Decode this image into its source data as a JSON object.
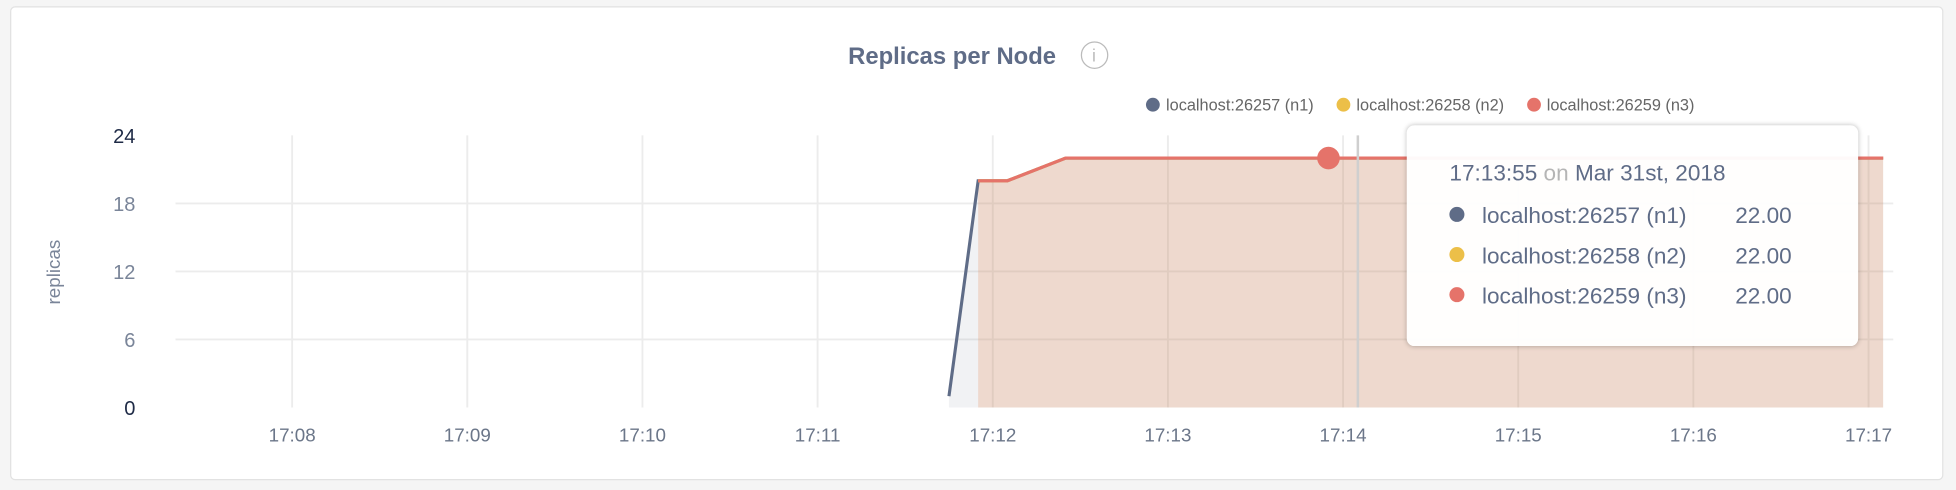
{
  "chart_data": {
    "type": "area",
    "title": "Replicas per Node",
    "ylabel": "replicas",
    "xlabel": "",
    "ylim": [
      0,
      24
    ],
    "yticks": [
      "0",
      "6",
      "12",
      "18",
      "24"
    ],
    "xticks": [
      "17:08",
      "17:09",
      "17:10",
      "17:11",
      "17:12",
      "17:13",
      "17:14",
      "17:15",
      "17:16",
      "17:17"
    ],
    "xlim": [
      "17:07:20",
      "17:17:05"
    ],
    "grid": true,
    "legend_position": "top-right",
    "series": [
      {
        "name": "localhost:26257 (n1)",
        "color": "#5f6c87",
        "points": [
          [
            "17:11:45",
            1
          ],
          [
            "17:11:55",
            20
          ],
          [
            "17:12:05",
            20
          ],
          [
            "17:12:25",
            22
          ],
          [
            "17:17:05",
            22
          ]
        ]
      },
      {
        "name": "localhost:26258 (n2)",
        "color": "#ecbf48",
        "points": [
          [
            "17:11:55",
            20
          ],
          [
            "17:12:05",
            20
          ],
          [
            "17:12:25",
            22
          ],
          [
            "17:17:05",
            22
          ]
        ]
      },
      {
        "name": "localhost:26259 (n3)",
        "color": "#e5736a",
        "points": [
          [
            "17:11:55",
            20
          ],
          [
            "17:12:05",
            20
          ],
          [
            "17:12:25",
            22
          ],
          [
            "17:17:05",
            22
          ]
        ]
      }
    ],
    "hover": {
      "time": "17:13:55",
      "on": "on",
      "date": "Mar 31st, 2018",
      "values": [
        "22.00",
        "22.00",
        "22.00"
      ]
    }
  },
  "info_icon": "info-icon"
}
